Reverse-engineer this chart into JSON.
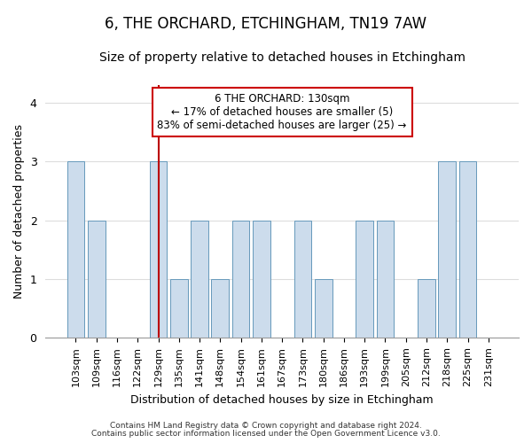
{
  "title": "6, THE ORCHARD, ETCHINGHAM, TN19 7AW",
  "subtitle": "Size of property relative to detached houses in Etchingham",
  "xlabel": "Distribution of detached houses by size in Etchingham",
  "ylabel": "Number of detached properties",
  "footer_line1": "Contains HM Land Registry data © Crown copyright and database right 2024.",
  "footer_line2": "Contains public sector information licensed under the Open Government Licence v3.0.",
  "categories": [
    "103sqm",
    "109sqm",
    "116sqm",
    "122sqm",
    "129sqm",
    "135sqm",
    "141sqm",
    "148sqm",
    "154sqm",
    "161sqm",
    "167sqm",
    "173sqm",
    "180sqm",
    "186sqm",
    "193sqm",
    "199sqm",
    "205sqm",
    "212sqm",
    "218sqm",
    "225sqm",
    "231sqm"
  ],
  "values": [
    3,
    2,
    0,
    0,
    3,
    1,
    2,
    1,
    2,
    2,
    0,
    2,
    1,
    0,
    2,
    2,
    0,
    1,
    3,
    3,
    0
  ],
  "bar_color": "#ccdcec",
  "bar_edge_color": "#6699bb",
  "highlight_index": 4,
  "highlight_line_color": "#bb0000",
  "annotation_text": "6 THE ORCHARD: 130sqm\n← 17% of detached houses are smaller (5)\n83% of semi-detached houses are larger (25) →",
  "annotation_box_color": "#ffffff",
  "annotation_box_edge_color": "#cc0000",
  "ylim": [
    0,
    4.3
  ],
  "yticks": [
    0,
    1,
    2,
    3,
    4
  ],
  "background_color": "#ffffff",
  "plot_background_color": "#ffffff",
  "grid_color": "#dddddd",
  "title_fontsize": 12,
  "subtitle_fontsize": 10,
  "label_fontsize": 9,
  "tick_fontsize": 8
}
